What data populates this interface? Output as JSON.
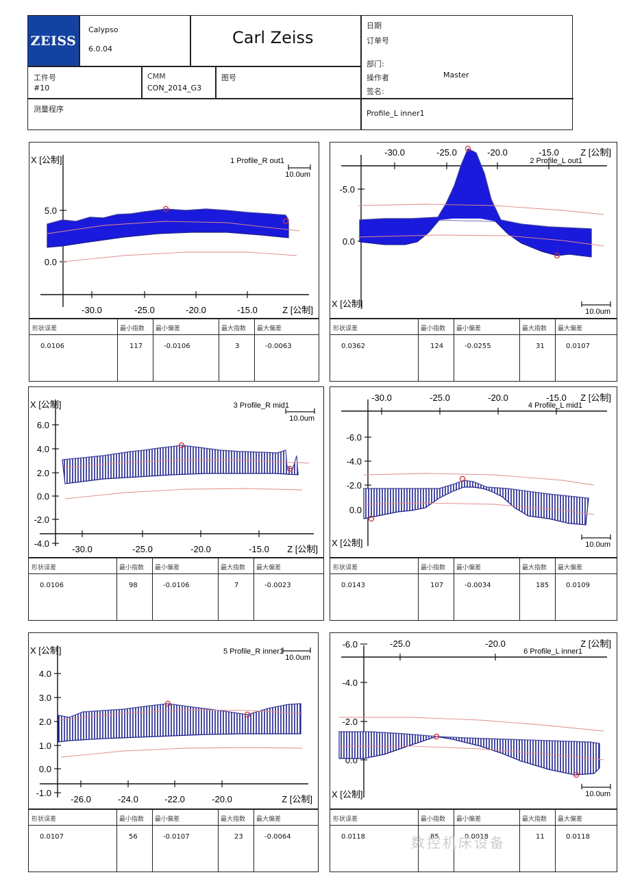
{
  "header": {
    "logo_text": "ZEISS",
    "software": "Calypso",
    "version": "6.0.04",
    "company": "Carl Zeiss",
    "date_label": "日期",
    "order_label": "订单号",
    "part_no_label": "工件号",
    "part_no_value": "#10",
    "cmm_label": "CMM",
    "cmm_value": "CON_2014_G3",
    "drawing_label": "图号",
    "dept_label": "部门:",
    "operator_label": "操作者",
    "operator_value": "Master",
    "sign_label": "签名:",
    "program_label": "测量程序",
    "program_value": "Profile_L inner1"
  },
  "table_headers": {
    "form_error": "形状误差",
    "min_index": "最小指数",
    "min_dev": "最小偏差",
    "max_index": "最大指数",
    "max_dev": "最大偏差"
  },
  "panels": [
    {
      "num": "1",
      "name": "Profile_R out1",
      "x_label": "X [公制]",
      "z_label": "Z [公制]",
      "scale": "10.0um",
      "x_ticks": [
        "5.0",
        "0.0"
      ],
      "z_ticks": [
        "-30.0",
        "-25.0",
        "-20.0",
        "-15.0"
      ],
      "form_error": "0.0106",
      "min_index": "117",
      "min_dev": "-0.0106",
      "max_index": "3",
      "max_dev": "-0.0063"
    },
    {
      "num": "2",
      "name": "Profile_L out1",
      "x_label": "X [公制]",
      "z_label": "Z [公制]",
      "scale": "10.0um",
      "x_ticks": [
        "-5.0",
        "0.0"
      ],
      "z_ticks": [
        "-30.0",
        "-25.0",
        "-20.0",
        "-15.0"
      ],
      "form_error": "0.0362",
      "min_index": "124",
      "min_dev": "-0.0255",
      "max_index": "31",
      "max_dev": "0.0107"
    },
    {
      "num": "3",
      "name": "Profile_R mid1",
      "x_label": "X [公制]",
      "z_label": "Z [公制]",
      "scale": "10.0um",
      "x_ticks": [
        "6.0",
        "4.0",
        "2.0",
        "0.0",
        "-2.0",
        "-4.0"
      ],
      "z_ticks": [
        "-30.0",
        "-25.0",
        "-20.0",
        "-15.0"
      ],
      "form_error": "0.0106",
      "min_index": "98",
      "min_dev": "-0.0106",
      "max_index": "7",
      "max_dev": "-0.0023"
    },
    {
      "num": "4",
      "name": "Profile_L mid1",
      "x_label": "X [公制]",
      "z_label": "Z [公制]",
      "scale": "10.0um",
      "x_ticks": [
        "-6.0",
        "-4.0",
        "-2.0",
        "0.0"
      ],
      "z_ticks": [
        "-30.0",
        "-25.0",
        "-20.0",
        "-15.0"
      ],
      "form_error": "0.0143",
      "min_index": "107",
      "min_dev": "-0.0034",
      "max_index": "185",
      "max_dev": "0.0109"
    },
    {
      "num": "5",
      "name": "Profile_R inner1",
      "x_label": "X [公制]",
      "z_label": "Z [公制]",
      "scale": "10.0um",
      "x_ticks": [
        "4.0",
        "3.0",
        "2.0",
        "1.0",
        "0.0",
        "-1.0"
      ],
      "z_ticks": [
        "-26.0",
        "-24.0",
        "-22.0",
        "-20.0"
      ],
      "form_error": "0.0107",
      "min_index": "56",
      "min_dev": "-0.0107",
      "max_index": "23",
      "max_dev": "-0.0064"
    },
    {
      "num": "6",
      "name": "Profile_L inner1",
      "x_label": "X [公制]",
      "z_label": "Z [公制]",
      "scale": "10.0um",
      "x_ticks": [
        "-6.0",
        "-4.0",
        "-2.0",
        "0.0"
      ],
      "z_ticks": [
        "-25.0",
        "-20.0"
      ],
      "form_error": "0.0118",
      "min_index": "85",
      "min_dev": "0.0018",
      "max_index": "11",
      "max_dev": "0.0118"
    }
  ],
  "colors": {
    "fill": "#1a1adc",
    "hatch": "#1b1f8a",
    "nominal": "#e08a8a",
    "marker": "#d03030"
  },
  "watermark": "数控机床设备"
}
